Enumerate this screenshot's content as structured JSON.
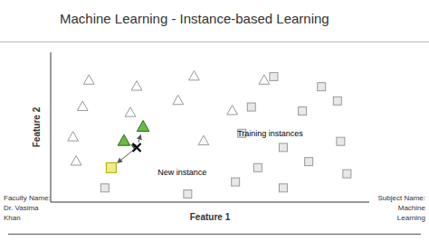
{
  "chart_data": {
    "type": "scatter",
    "title": "Machine Learning - Instance-based Learning",
    "xlabel": "Feature 1",
    "ylabel": "Feature 2",
    "xlim": [
      0.5,
      10.5
    ],
    "ylim": [
      2.8,
      10.2
    ],
    "tick_labels": false,
    "grid": false,
    "series": [
      {
        "color": "#ffffff",
        "marker": "triangle",
        "x": [
          1.7,
          3.2,
          5.0,
          7.2,
          1.5,
          3.0,
          4.5,
          6.2,
          1.2,
          5.3,
          1.3
        ],
        "values": [
          8.8,
          8.5,
          9.0,
          8.8,
          7.5,
          7.2,
          7.8,
          7.3,
          6.0,
          5.8,
          4.8
        ]
      },
      {
        "color": "#e8e8e8",
        "marker": "square",
        "x": [
          7.5,
          9.0,
          6.8,
          8.4,
          9.5,
          6.5,
          7.8,
          9.6,
          7.0,
          8.6,
          9.8,
          2.2,
          4.8,
          6.3,
          7.8
        ],
        "values": [
          9.0,
          8.5,
          7.5,
          7.3,
          7.8,
          6.2,
          5.5,
          5.8,
          4.5,
          4.8,
          4.2,
          3.5,
          3.2,
          3.8,
          3.5
        ]
      },
      {
        "color": "#66bb44",
        "marker": "triangle",
        "x": [
          3.4,
          2.8
        ],
        "values": [
          6.5,
          5.8
        ]
      },
      {
        "color": "#eeee88",
        "marker": "square",
        "x": [
          2.4
        ],
        "values": [
          4.5
        ]
      },
      {
        "color": "#000000",
        "marker": "x",
        "x": [
          3.2
        ],
        "values": [
          5.5
        ]
      }
    ],
    "annotations": [
      {
        "text": "Training instances",
        "x": 6.3,
        "y": 6.2
      },
      {
        "text": "New instance",
        "x": 3.8,
        "y": 4.3
      },
      {
        "text": "Faculty Name:\nDr. Vasima\nKhan"
      },
      {
        "text": "Subject Name:\nMachine\nLearning"
      }
    ]
  }
}
